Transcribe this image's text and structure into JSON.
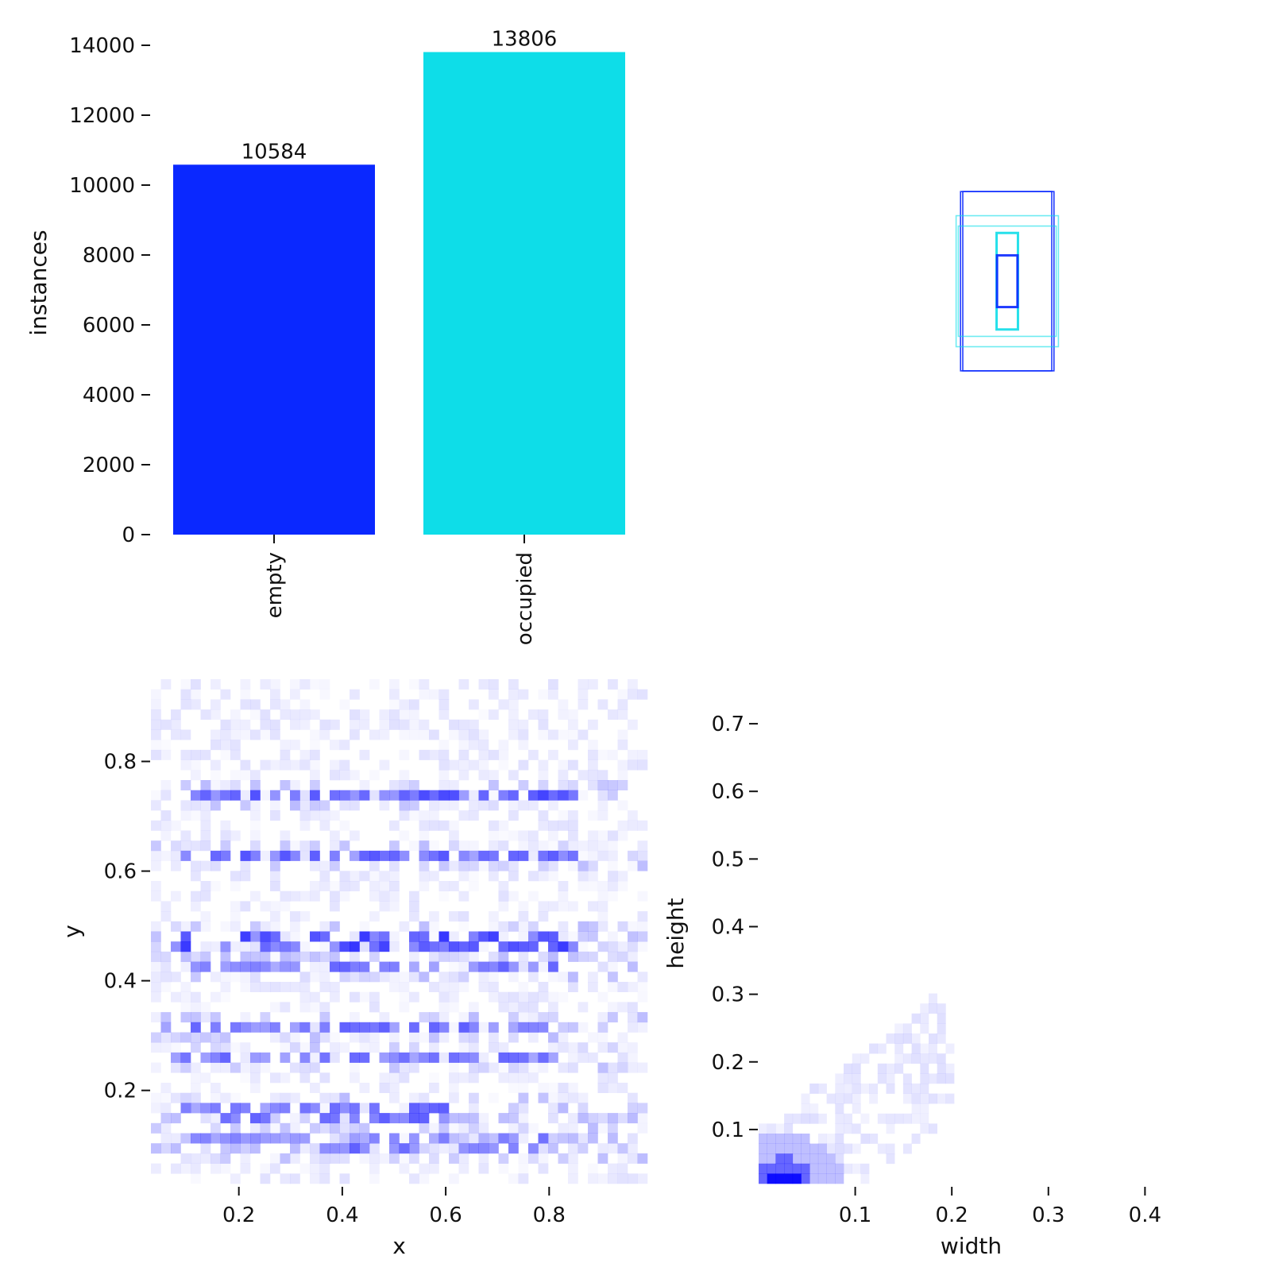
{
  "chart_data": [
    {
      "type": "bar",
      "categories": [
        "empty",
        "occupied"
      ],
      "values": [
        10584,
        13806
      ],
      "data_labels": [
        "10584",
        "13806"
      ],
      "colors": [
        "#0a28ff",
        "#0edde8"
      ],
      "ylabel": "instances",
      "xlabel": "",
      "ylim": [
        0,
        14000
      ],
      "yticks": [
        0,
        2000,
        4000,
        6000,
        8000,
        10000,
        12000,
        14000
      ],
      "ytick_labels": [
        "0",
        "2000",
        "4000",
        "6000",
        "8000",
        "10000",
        "12000",
        "14000"
      ]
    },
    {
      "type": "box-overlay",
      "description_colors": [
        "#0a28ff",
        "#0edde8"
      ],
      "boxes": [
        {
          "w": 0.2,
          "h": 0.26,
          "color": "#0a28ff"
        },
        {
          "w": 0.21,
          "h": 0.26,
          "color": "#0a28ff"
        },
        {
          "w": 0.23,
          "h": 0.19,
          "color": "#0edde8"
        },
        {
          "w": 0.22,
          "h": 0.16,
          "color": "#0edde8"
        },
        {
          "w": 0.048,
          "h": 0.14,
          "color": "#0edde8"
        },
        {
          "w": 0.046,
          "h": 0.075,
          "color": "#0a28ff"
        }
      ]
    },
    {
      "type": "heatmap",
      "xlabel": "x",
      "ylabel": "y",
      "xlim": [
        0.03,
        0.99
      ],
      "ylim": [
        0.03,
        0.95
      ],
      "xticks": [
        0.2,
        0.4,
        0.6,
        0.8
      ],
      "xtick_labels": [
        "0.2",
        "0.4",
        "0.6",
        "0.8"
      ],
      "yticks": [
        0.2,
        0.4,
        0.6,
        0.8
      ],
      "ytick_labels": [
        "0.2",
        "0.4",
        "0.6",
        "0.8"
      ],
      "color": "#0000ff",
      "dense_rows": [
        {
          "y": 0.74,
          "x_range": [
            0.07,
            0.86
          ],
          "intensity": 0.7
        },
        {
          "y": 0.63,
          "x_range": [
            0.05,
            0.88
          ],
          "intensity": 0.65
        },
        {
          "y": 0.47,
          "x_range": [
            0.07,
            0.85
          ],
          "intensity": 0.75
        },
        {
          "y": 0.42,
          "x_range": [
            0.07,
            0.84
          ],
          "intensity": 0.6
        },
        {
          "y": 0.31,
          "x_range": [
            0.04,
            0.82
          ],
          "intensity": 0.6
        },
        {
          "y": 0.255,
          "x_range": [
            0.06,
            0.82
          ],
          "intensity": 0.6
        },
        {
          "y": 0.16,
          "x_range": [
            0.09,
            0.6
          ],
          "intensity": 0.6
        },
        {
          "y": 0.12,
          "x_range": [
            0.11,
            0.8
          ],
          "intensity": 0.55
        },
        {
          "y": 0.095,
          "x_range": [
            0.35,
            0.78
          ],
          "intensity": 0.6
        }
      ]
    },
    {
      "type": "heatmap",
      "xlabel": "width",
      "ylabel": "height",
      "xlim": [
        0.0,
        0.44
      ],
      "ylim": [
        0.02,
        0.76
      ],
      "xticks": [
        0.1,
        0.2,
        0.3,
        0.4
      ],
      "xtick_labels": [
        "0.1",
        "0.2",
        "0.3",
        "0.4"
      ],
      "yticks": [
        0.1,
        0.2,
        0.3,
        0.4,
        0.5,
        0.6,
        0.7
      ],
      "ytick_labels": [
        "0.1",
        "0.2",
        "0.3",
        "0.4",
        "0.5",
        "0.6",
        "0.7"
      ],
      "color": "#0000ff",
      "peak": {
        "w": 0.027,
        "h": 0.025
      }
    }
  ]
}
